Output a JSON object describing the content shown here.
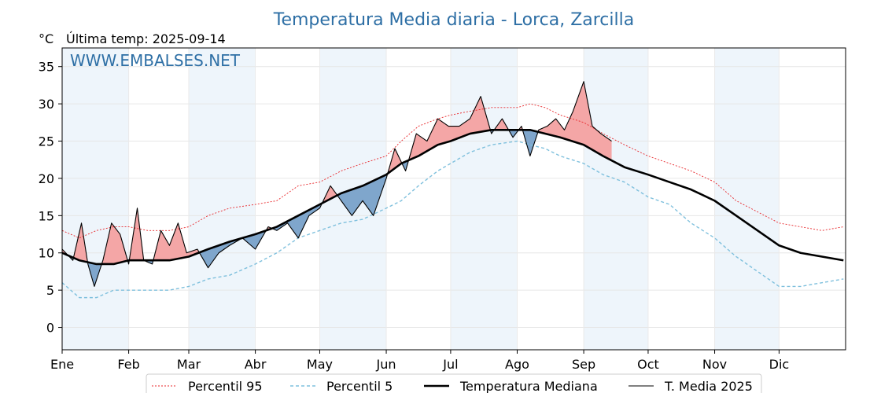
{
  "chart_data": {
    "type": "line",
    "title": "Temperatura Media diaria - Lorca, Zarcilla",
    "unit_label": "°C",
    "subtitle": "Última temp: 2025-09-14",
    "watermark": "WWW.EMBALSES.NET",
    "ylim": [
      -3,
      37.5
    ],
    "yticks": [
      0,
      5,
      10,
      15,
      20,
      25,
      30,
      35
    ],
    "xlim_days": [
      0,
      365
    ],
    "months": [
      {
        "label": "Ene",
        "start": 0,
        "shaded": true
      },
      {
        "label": "Feb",
        "start": 31,
        "shaded": false
      },
      {
        "label": "Mar",
        "start": 59,
        "shaded": true
      },
      {
        "label": "Abr",
        "start": 90,
        "shaded": false
      },
      {
        "label": "May",
        "start": 120,
        "shaded": true
      },
      {
        "label": "Jun",
        "start": 151,
        "shaded": false
      },
      {
        "label": "Jul",
        "start": 181,
        "shaded": true
      },
      {
        "label": "Ago",
        "start": 212,
        "shaded": false
      },
      {
        "label": "Sep",
        "start": 243,
        "shaded": true
      },
      {
        "label": "Oct",
        "start": 273,
        "shaded": false
      },
      {
        "label": "Nov",
        "start": 304,
        "shaded": true
      },
      {
        "label": "Dic",
        "start": 334,
        "shaded": false
      }
    ],
    "grid": true,
    "legend_position": "bottom",
    "colors": {
      "p95": "#e8262a",
      "p5": "#7fc0dd",
      "median": "#000000",
      "current": "#000000",
      "above_fill": "#f4a6a6",
      "below_fill": "#7fa6cc",
      "title": "#2e6fa5",
      "month_shade": "#eef5fb"
    },
    "series": [
      {
        "key": "p95",
        "name": "Percentil 95",
        "x": [
          0,
          8,
          16,
          24,
          31,
          40,
          50,
          59,
          68,
          78,
          90,
          100,
          110,
          120,
          130,
          140,
          151,
          158,
          166,
          175,
          181,
          190,
          200,
          212,
          218,
          225,
          232,
          243,
          252,
          262,
          273,
          283,
          293,
          304,
          314,
          324,
          334,
          344,
          354,
          364
        ],
        "y": [
          13,
          12,
          13,
          13.5,
          13.5,
          13,
          13,
          13.5,
          15,
          16,
          16.5,
          17,
          19,
          19.5,
          21,
          22,
          23,
          25,
          27,
          28,
          28.5,
          29,
          29.5,
          29.5,
          30,
          29.5,
          28.5,
          27.5,
          26,
          24.5,
          23,
          22,
          21,
          19.5,
          17,
          15.5,
          14,
          13.5,
          13,
          13.5
        ]
      },
      {
        "key": "p5",
        "name": "Percentil 5",
        "x": [
          0,
          8,
          16,
          24,
          31,
          40,
          50,
          59,
          68,
          78,
          90,
          100,
          110,
          120,
          130,
          140,
          151,
          158,
          166,
          175,
          181,
          190,
          200,
          212,
          218,
          225,
          232,
          243,
          252,
          262,
          273,
          283,
          293,
          304,
          314,
          324,
          334,
          344,
          354,
          364
        ],
        "y": [
          6,
          4,
          4,
          5,
          5,
          5,
          5,
          5.5,
          6.5,
          7,
          8.5,
          10,
          12,
          13,
          14,
          14.5,
          16,
          17,
          19,
          21,
          22,
          23.5,
          24.5,
          25,
          24.5,
          24,
          23,
          22,
          20.5,
          19.5,
          17.5,
          16.5,
          14,
          12,
          9.5,
          7.5,
          5.5,
          5.5,
          6,
          6.5
        ]
      },
      {
        "key": "median",
        "name": "Temperatura Mediana",
        "x": [
          0,
          8,
          16,
          24,
          31,
          40,
          50,
          59,
          68,
          78,
          90,
          100,
          110,
          120,
          130,
          140,
          151,
          158,
          166,
          175,
          181,
          190,
          200,
          212,
          218,
          225,
          232,
          243,
          252,
          262,
          273,
          283,
          293,
          304,
          314,
          324,
          334,
          344,
          354,
          364
        ],
        "y": [
          10,
          9,
          8.5,
          8.5,
          9,
          9,
          9,
          9.5,
          10.5,
          11.5,
          12.5,
          13.5,
          15,
          16.5,
          18,
          19,
          20.5,
          22,
          23,
          24.5,
          25,
          26,
          26.5,
          26.5,
          26.5,
          26,
          25.5,
          24.5,
          23,
          21.5,
          20.5,
          19.5,
          18.5,
          17,
          15,
          13,
          11,
          10,
          9.5,
          9
        ]
      },
      {
        "key": "current",
        "name": "T. Media 2025",
        "x": [
          0,
          5,
          9,
          12,
          15,
          19,
          23,
          27,
          31,
          35,
          38,
          42,
          46,
          50,
          54,
          58,
          63,
          68,
          73,
          78,
          84,
          90,
          96,
          100,
          105,
          110,
          115,
          120,
          125,
          130,
          135,
          140,
          145,
          151,
          155,
          160,
          165,
          170,
          175,
          180,
          185,
          190,
          195,
          200,
          205,
          210,
          214,
          218,
          222,
          226,
          230,
          234,
          238,
          243,
          247,
          251,
          256
        ],
        "y": [
          10.5,
          9,
          14,
          8.5,
          5.5,
          9,
          14,
          12.5,
          8.5,
          16,
          9,
          8.5,
          13,
          11,
          14,
          10,
          10.5,
          8,
          10,
          11,
          12,
          10.5,
          13.5,
          13,
          14,
          12,
          15,
          16,
          19,
          17,
          15,
          17,
          15,
          20,
          24,
          21,
          26,
          25,
          28,
          27,
          27,
          28,
          31,
          26,
          28,
          25.5,
          27,
          23,
          26.5,
          27,
          28,
          26.5,
          29,
          33,
          27,
          26,
          25
        ]
      }
    ],
    "legend": [
      {
        "key": "p95",
        "label": "Percentil 95"
      },
      {
        "key": "p5",
        "label": "Percentil 5"
      },
      {
        "key": "median",
        "label": "Temperatura Mediana"
      },
      {
        "key": "current",
        "label": "T. Media 2025"
      }
    ]
  }
}
